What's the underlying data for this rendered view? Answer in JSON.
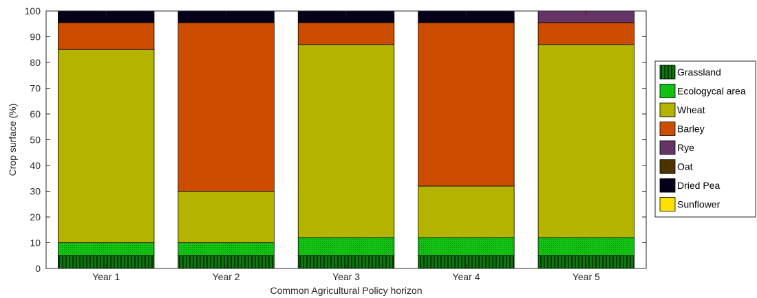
{
  "chart_data": {
    "type": "bar",
    "stacked": true,
    "categories": [
      "Year 1",
      "Year 2",
      "Year 3",
      "Year 4",
      "Year 5"
    ],
    "series": [
      {
        "name": "Grassland",
        "color": "#0a7a0a",
        "pattern": "vertical-hatch",
        "values": [
          5,
          5,
          5,
          5,
          5
        ]
      },
      {
        "name": "Ecologycal area",
        "color": "#14c414",
        "pattern": "dotted",
        "values": [
          5,
          5,
          7,
          7,
          7
        ]
      },
      {
        "name": "Wheat",
        "color": "#b3b300",
        "values": [
          75,
          20,
          75,
          20,
          75
        ]
      },
      {
        "name": "Barley",
        "color": "#cc4c00",
        "values": [
          10.5,
          65.5,
          8.5,
          63.5,
          8.5
        ]
      },
      {
        "name": "Rye",
        "color": "#663366",
        "values": [
          0,
          0,
          0,
          0,
          4.5
        ]
      },
      {
        "name": "Oat",
        "color": "#4d3300",
        "values": [
          0,
          0,
          0,
          0,
          0
        ]
      },
      {
        "name": "Dried Pea",
        "color": "#03001a",
        "values": [
          4.5,
          4.5,
          4.5,
          4.5,
          0
        ]
      },
      {
        "name": "Sunflower",
        "color": "#ffe000",
        "values": [
          0,
          0,
          0,
          0,
          0
        ]
      }
    ],
    "xlabel": "Common Agricultural Policy horizon",
    "ylabel": "Crop surface (%)",
    "ylim": [
      0,
      100
    ],
    "yticks": [
      0,
      10,
      20,
      30,
      40,
      50,
      60,
      70,
      80,
      90,
      100
    ],
    "grid": false,
    "legend_position": "right"
  }
}
